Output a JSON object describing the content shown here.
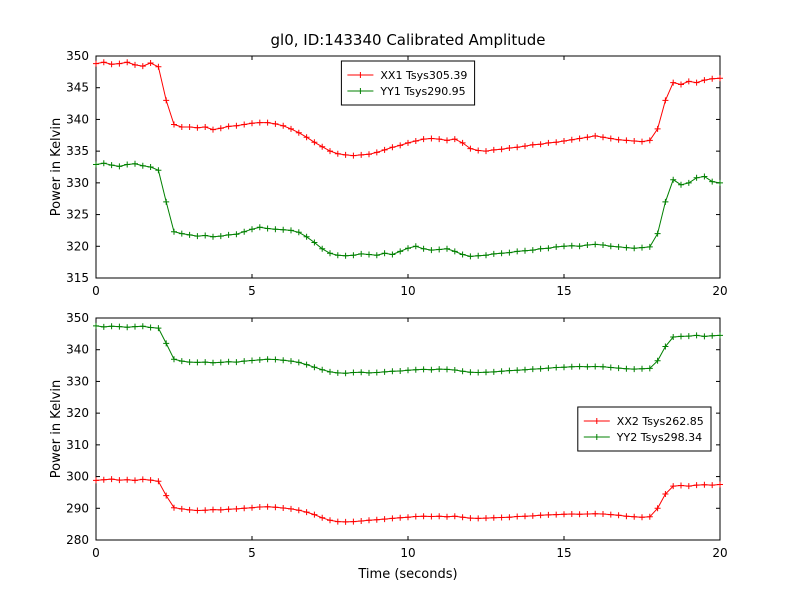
{
  "figure": {
    "title": "gl0, ID:143340 Calibrated Amplitude",
    "background": "#ffffff"
  },
  "chart_data": [
    {
      "type": "line",
      "title": "gl0, ID:143340 Calibrated Amplitude",
      "xlabel": "",
      "ylabel": "Power in Kelvin",
      "xlim": [
        0,
        20
      ],
      "ylim": [
        315,
        350
      ],
      "xticks": [
        0,
        5,
        10,
        15,
        20
      ],
      "yticks": [
        315,
        320,
        325,
        330,
        335,
        340,
        345,
        350
      ],
      "x_start": 0,
      "x_step": 0.25,
      "grid": false,
      "legend_position": "top-center",
      "series": [
        {
          "name": "XX1 Tsys305.39",
          "color": "#ff0000",
          "marker": "+",
          "values": [
            348.8,
            349.0,
            348.7,
            348.8,
            349.0,
            348.6,
            348.4,
            348.9,
            348.3,
            343.0,
            339.2,
            338.8,
            338.8,
            338.7,
            338.8,
            338.4,
            338.6,
            338.9,
            339.0,
            339.2,
            339.4,
            339.5,
            339.5,
            339.3,
            339.0,
            338.5,
            337.9,
            337.2,
            336.4,
            335.7,
            335.0,
            334.6,
            334.4,
            334.3,
            334.4,
            334.5,
            334.8,
            335.2,
            335.6,
            335.9,
            336.3,
            336.6,
            336.9,
            337.0,
            336.9,
            336.7,
            336.9,
            336.3,
            335.4,
            335.1,
            335.0,
            335.2,
            335.3,
            335.5,
            335.6,
            335.8,
            336.0,
            336.1,
            336.3,
            336.4,
            336.6,
            336.8,
            337.0,
            337.2,
            337.4,
            337.2,
            337.0,
            336.8,
            336.7,
            336.6,
            336.5,
            336.7,
            338.5,
            343.0,
            345.8,
            345.5,
            346.0,
            345.8,
            346.2,
            346.4,
            346.5
          ]
        },
        {
          "name": "YY1 Tsys290.95",
          "color": "#008000",
          "marker": "+",
          "values": [
            332.9,
            333.1,
            332.8,
            332.6,
            332.9,
            333.0,
            332.7,
            332.5,
            332.0,
            327.0,
            322.3,
            322.0,
            321.8,
            321.6,
            321.7,
            321.5,
            321.6,
            321.8,
            321.9,
            322.3,
            322.7,
            323.0,
            322.8,
            322.7,
            322.6,
            322.5,
            322.2,
            321.5,
            320.6,
            319.6,
            318.9,
            318.6,
            318.5,
            318.6,
            318.8,
            318.7,
            318.6,
            318.9,
            318.7,
            319.2,
            319.7,
            320.0,
            319.6,
            319.4,
            319.5,
            319.6,
            319.2,
            318.7,
            318.4,
            318.5,
            318.6,
            318.8,
            318.9,
            319.0,
            319.2,
            319.3,
            319.4,
            319.6,
            319.7,
            319.9,
            320.0,
            320.1,
            320.0,
            320.2,
            320.3,
            320.2,
            320.0,
            319.9,
            319.8,
            319.7,
            319.8,
            319.9,
            322.0,
            327.0,
            330.5,
            329.7,
            330.0,
            330.8,
            331.0,
            330.2,
            330.0
          ]
        }
      ]
    },
    {
      "type": "line",
      "title": "",
      "xlabel": "Time (seconds)",
      "ylabel": "Power in Kelvin",
      "xlim": [
        0,
        20
      ],
      "ylim": [
        280,
        350
      ],
      "xticks": [
        0,
        5,
        10,
        15,
        20
      ],
      "yticks": [
        280,
        290,
        300,
        310,
        320,
        330,
        340,
        350
      ],
      "x_start": 0,
      "x_step": 0.25,
      "grid": false,
      "legend_position": "middle-right",
      "series": [
        {
          "name": "XX2 Tsys262.85",
          "color": "#ff0000",
          "marker": "+",
          "values": [
            298.8,
            299.0,
            299.2,
            298.9,
            299.0,
            298.8,
            299.1,
            298.9,
            298.5,
            294.0,
            290.2,
            289.8,
            289.5,
            289.3,
            289.4,
            289.6,
            289.5,
            289.7,
            289.8,
            290.0,
            290.2,
            290.4,
            290.5,
            290.3,
            290.1,
            289.8,
            289.4,
            288.8,
            288.0,
            287.0,
            286.2,
            285.8,
            285.7,
            285.8,
            286.0,
            286.2,
            286.4,
            286.6,
            286.8,
            287.0,
            287.2,
            287.4,
            287.5,
            287.4,
            287.5,
            287.3,
            287.5,
            287.2,
            286.9,
            286.8,
            286.9,
            287.0,
            287.1,
            287.2,
            287.4,
            287.5,
            287.6,
            287.8,
            287.9,
            288.0,
            288.1,
            288.2,
            288.1,
            288.2,
            288.3,
            288.2,
            288.0,
            287.8,
            287.5,
            287.3,
            287.2,
            287.3,
            290.0,
            294.5,
            297.0,
            297.2,
            297.0,
            297.3,
            297.4,
            297.3,
            297.5
          ]
        },
        {
          "name": "YY2 Tsys298.34",
          "color": "#008000",
          "marker": "+",
          "values": [
            347.5,
            347.2,
            347.4,
            347.3,
            347.1,
            347.3,
            347.4,
            347.0,
            346.8,
            342.0,
            337.0,
            336.4,
            336.1,
            336.0,
            336.1,
            335.9,
            336.0,
            336.2,
            336.1,
            336.4,
            336.6,
            336.8,
            337.0,
            336.9,
            336.7,
            336.4,
            336.0,
            335.3,
            334.5,
            333.7,
            333.0,
            332.7,
            332.6,
            332.8,
            332.9,
            332.7,
            332.8,
            333.0,
            333.2,
            333.3,
            333.5,
            333.7,
            333.8,
            333.7,
            333.9,
            333.8,
            333.6,
            333.2,
            332.9,
            332.8,
            332.9,
            333.0,
            333.2,
            333.4,
            333.5,
            333.7,
            333.9,
            334.0,
            334.2,
            334.4,
            334.5,
            334.6,
            334.7,
            334.6,
            334.7,
            334.6,
            334.4,
            334.2,
            334.0,
            333.9,
            334.0,
            334.1,
            336.5,
            341.0,
            344.0,
            344.2,
            344.3,
            344.5,
            344.2,
            344.4,
            344.5
          ]
        }
      ]
    }
  ]
}
